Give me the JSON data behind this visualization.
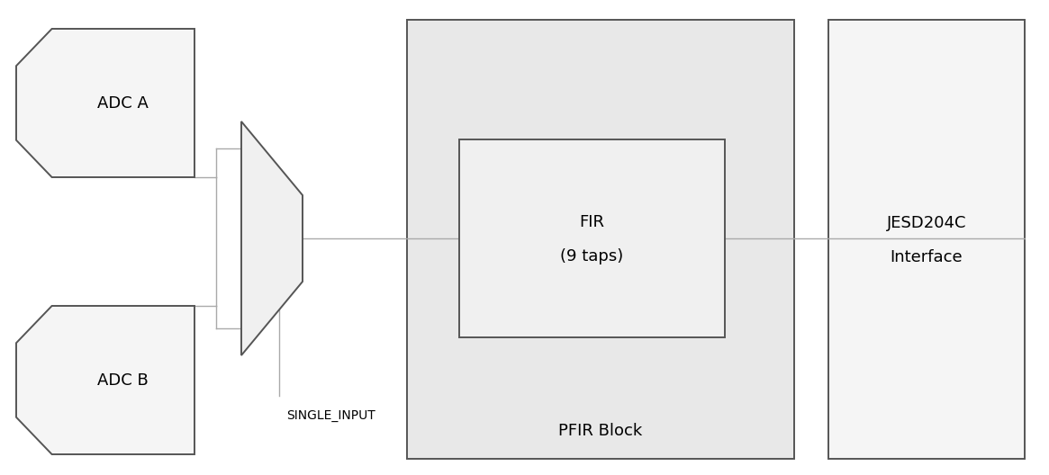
{
  "bg_color": "#ffffff",
  "adc_fill": "#f5f5f5",
  "adc_edge": "#555555",
  "mux_fill": "#f0f0f0",
  "mux_edge": "#555555",
  "pfir_fill": "#e8e8e8",
  "pfir_edge": "#555555",
  "fir_fill": "#f0f0f0",
  "fir_edge": "#555555",
  "jesd_fill": "#f5f5f5",
  "jesd_edge": "#555555",
  "line_color": "#aaaaaa",
  "text_color": "#000000",
  "adc_a_label": "ADC A",
  "adc_b_label": "ADC B",
  "fir_label_line1": "FIR",
  "fir_label_line2": "(9 taps)",
  "pfir_label": "PFIR Block",
  "jesd_label_line1": "JESD204C",
  "jesd_label_line2": "Interface",
  "single_input_label": "SINGLE_INPUT",
  "font_size_main": 13,
  "fig_width": 11.65,
  "fig_height": 5.28
}
